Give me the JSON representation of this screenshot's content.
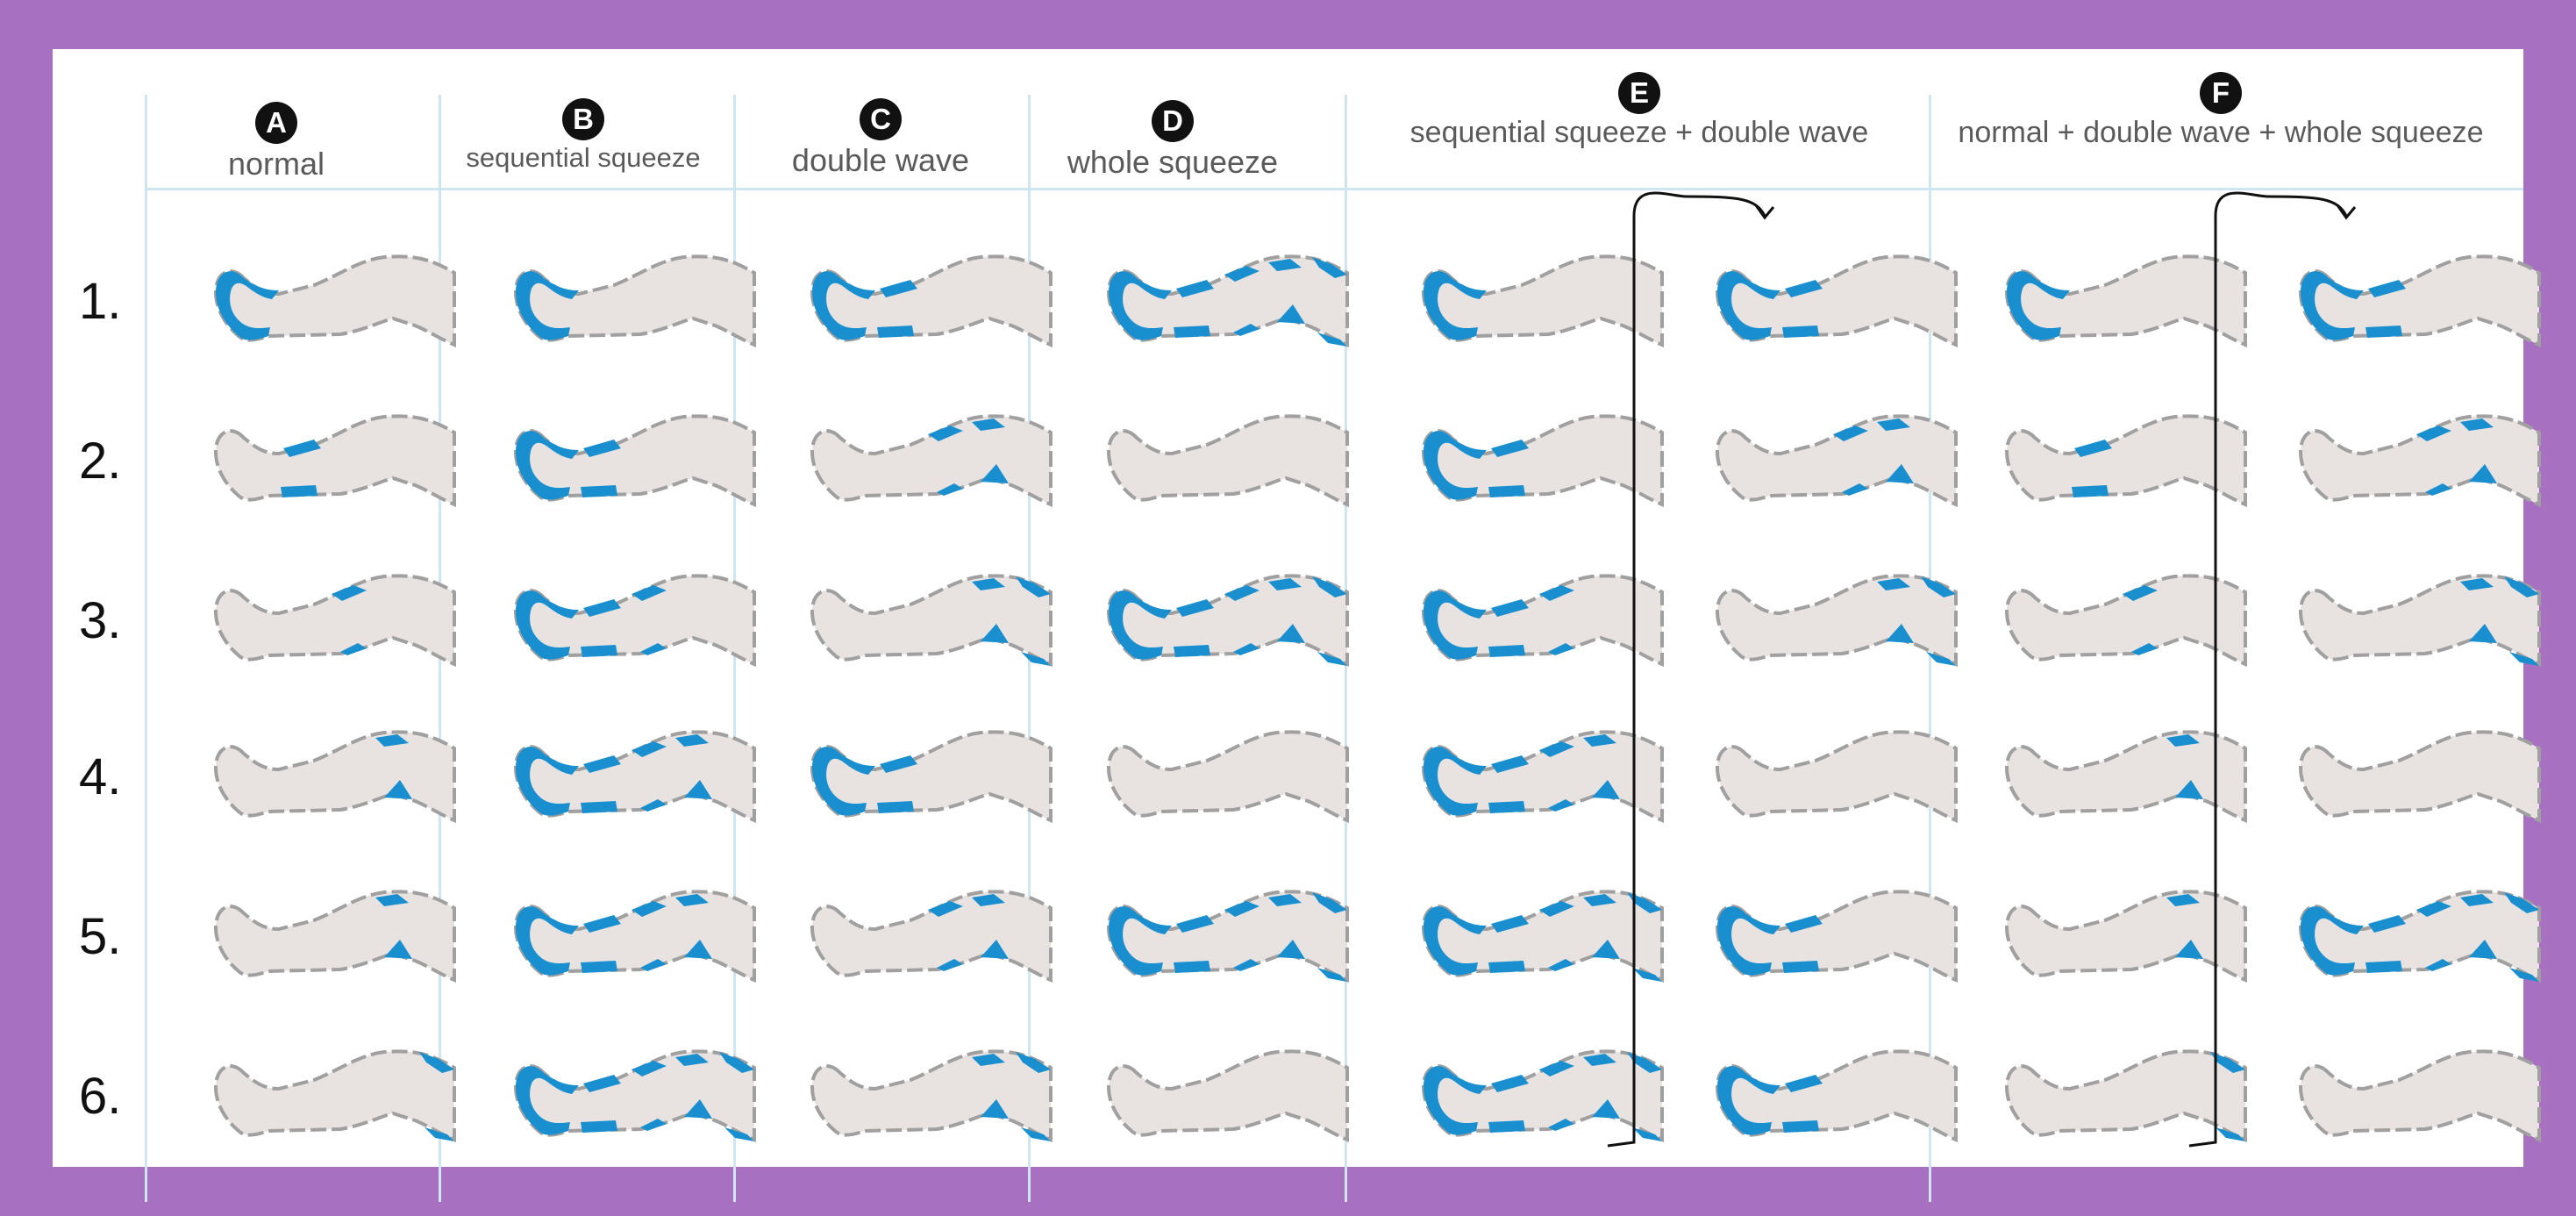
{
  "columns": [
    {
      "letter": "A",
      "label": "normal"
    },
    {
      "letter": "B",
      "label": "sequential squeeze"
    },
    {
      "letter": "C",
      "label": "double wave"
    },
    {
      "letter": "D",
      "label": "whole squeeze"
    },
    {
      "letter": "E",
      "label": "sequential squeeze + double wave"
    },
    {
      "letter": "F",
      "label": "normal + double wave + whole squeeze"
    }
  ],
  "rows": [
    "1.",
    "2.",
    "3.",
    "4.",
    "5.",
    "6."
  ],
  "colors": {
    "active": "#1a8fcf",
    "leg_fill": "#e8e3e1",
    "leg_outline": "#a0a0a0",
    "frame": "#a870c0",
    "grid": "#cde6f2"
  },
  "legend": {
    "chambers": [
      "foot",
      "calf",
      "knee",
      "thigh"
    ]
  },
  "states": {
    "A": [
      [
        "foot"
      ],
      [
        "calf"
      ],
      [
        "knee"
      ],
      [
        "thigh"
      ],
      [
        "thigh"
      ],
      [
        "hip"
      ]
    ],
    "B": [
      [
        "foot"
      ],
      [
        "foot",
        "calf"
      ],
      [
        "foot",
        "calf",
        "knee"
      ],
      [
        "foot",
        "calf",
        "knee",
        "thigh"
      ],
      [
        "foot",
        "calf",
        "knee",
        "thigh"
      ],
      [
        "foot",
        "calf",
        "knee",
        "thigh",
        "hip"
      ]
    ],
    "C": [
      [
        "foot",
        "calf"
      ],
      [
        "knee",
        "thigh"
      ],
      [
        "thigh",
        "hip"
      ],
      [
        "foot",
        "calf"
      ],
      [
        "knee",
        "thigh"
      ],
      [
        "thigh",
        "hip"
      ]
    ],
    "D": [
      [
        "foot",
        "calf",
        "knee",
        "thigh",
        "hip"
      ],
      [],
      [
        "foot",
        "calf",
        "knee",
        "thigh",
        "hip"
      ],
      [],
      [
        "foot",
        "calf",
        "knee",
        "thigh",
        "hip"
      ],
      []
    ],
    "E1": [
      [
        "foot"
      ],
      [
        "foot",
        "calf"
      ],
      [
        "foot",
        "calf",
        "knee"
      ],
      [
        "foot",
        "calf",
        "knee",
        "thigh"
      ],
      [
        "foot",
        "calf",
        "knee",
        "thigh",
        "hip"
      ],
      [
        "foot",
        "calf",
        "knee",
        "thigh",
        "hip"
      ]
    ],
    "E2": [
      [
        "foot",
        "calf"
      ],
      [
        "knee",
        "thigh"
      ],
      [
        "thigh",
        "hip"
      ],
      [],
      [
        "foot",
        "calf"
      ],
      [
        "foot",
        "calf"
      ]
    ],
    "F1": [
      [
        "foot"
      ],
      [
        "calf"
      ],
      [
        "knee"
      ],
      [
        "thigh"
      ],
      [
        "thigh"
      ],
      [
        "hip"
      ]
    ],
    "F2": [
      [
        "foot",
        "calf"
      ],
      [
        "knee",
        "thigh"
      ],
      [
        "thigh",
        "hip"
      ],
      [],
      [
        "foot",
        "calf",
        "knee",
        "thigh",
        "hip"
      ],
      []
    ]
  }
}
